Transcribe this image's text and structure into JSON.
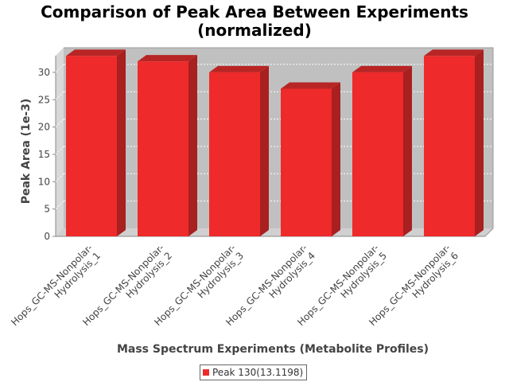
{
  "chart_data": {
    "type": "bar",
    "title": [
      "Comparison of Peak Area Between Experiments",
      "(normalized)"
    ],
    "xlabel": "Mass Spectrum Experiments (Metabolite Profiles)",
    "ylabel": "Peak Area (1e-3)",
    "categories": [
      [
        "Hops_GC-MS-Nonpolar-",
        "Hydrolysis_1"
      ],
      [
        "Hops_GC-MS-Nonpolar-",
        "Hydrolysis_2"
      ],
      [
        "Hops_GC-MS-Nonpolar-",
        "Hydrolysis_3"
      ],
      [
        "Hops_GC-MS-Nonpolar-",
        "Hydrolysis_4"
      ],
      [
        "Hops_GC-MS-Nonpolar-",
        "Hydrolysis_5"
      ],
      [
        "Hops_GC-MS-Nonpolar-",
        "Hydrolysis_6"
      ]
    ],
    "series": [
      {
        "name": "Peak 130(13.1198)",
        "color": "#ee2a2a",
        "values": [
          33.0,
          32.0,
          30.0,
          27.0,
          30.0,
          33.0
        ]
      }
    ],
    "yticks": [
      0,
      5,
      10,
      15,
      20,
      25,
      30
    ],
    "ylim": [
      0,
      34.5
    ],
    "grid": true,
    "legend_position": "bottom-center",
    "style": "3d"
  }
}
